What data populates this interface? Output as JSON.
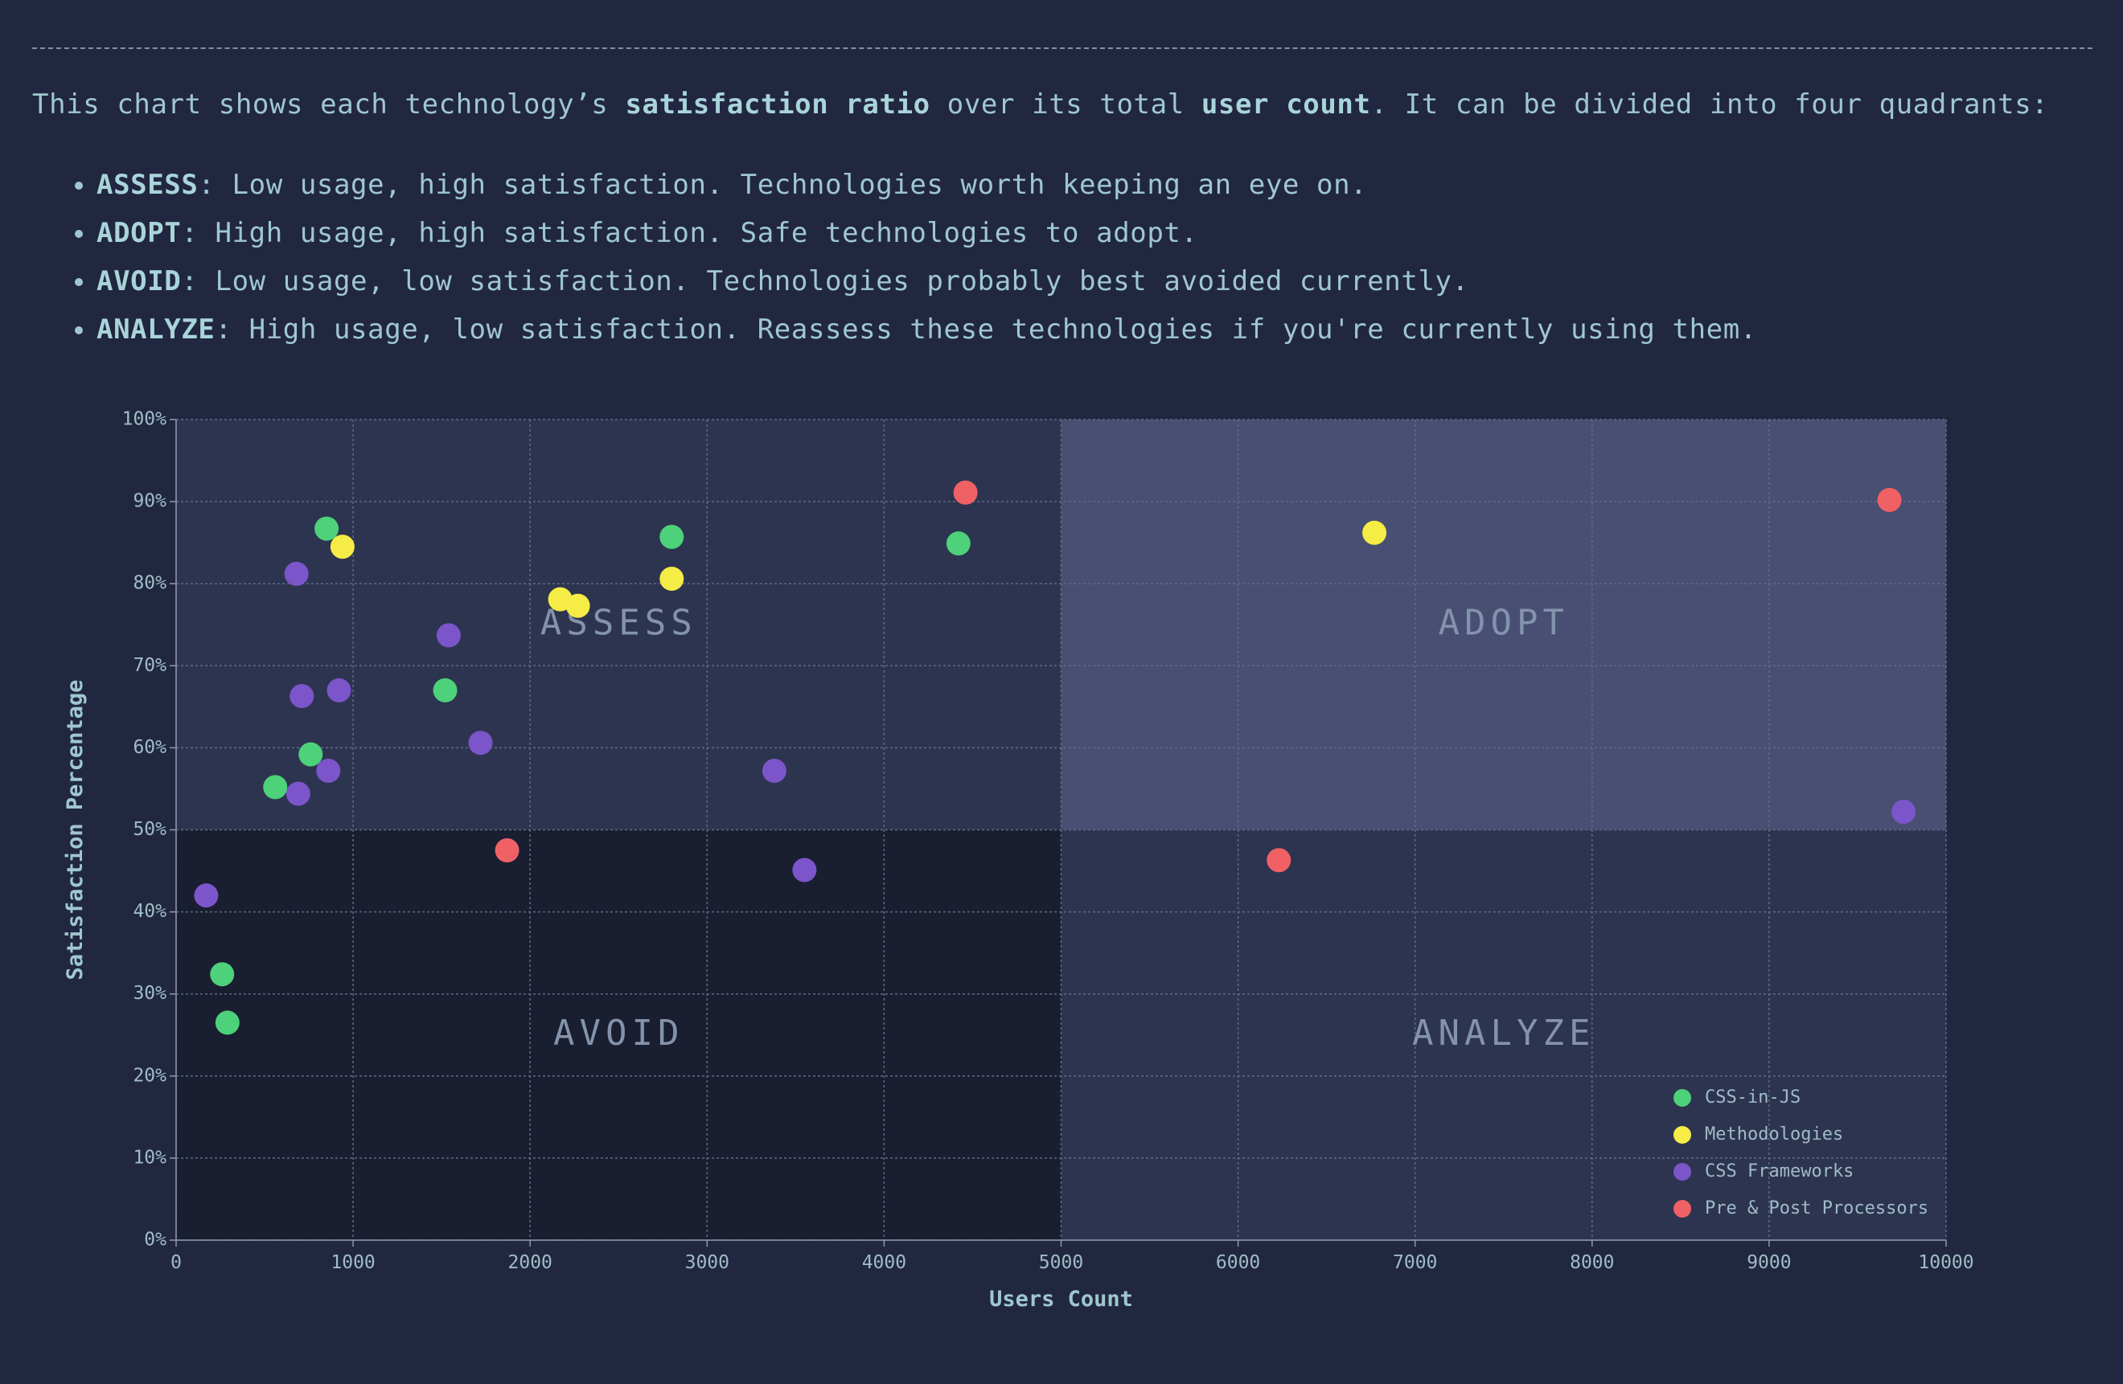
{
  "intro": {
    "part1": "This chart shows each technology’s ",
    "bold1": "satisfaction ratio",
    "part2": " over its total ",
    "bold2": "user count",
    "part3": ". It can be divided into four quadrants:"
  },
  "quadrants": [
    {
      "name": "ASSESS",
      "desc": ": Low usage, high satisfaction. Technologies worth keeping an eye on."
    },
    {
      "name": "ADOPT",
      "desc": ": High usage, high satisfaction. Safe technologies to adopt."
    },
    {
      "name": "AVOID",
      "desc": ": Low usage, low satisfaction. Technologies probably best avoided currently."
    },
    {
      "name": "ANALYZE",
      "desc": ": High usage, low satisfaction. Reassess these technologies if you're currently using them."
    }
  ],
  "colors": {
    "background": "#212740",
    "quadrant_assess": "#2d3450",
    "quadrant_adopt": "#484f73",
    "quadrant_avoid": "#191e31",
    "quadrant_analyze": "#2d3450",
    "grid": "#5f6b86"
  },
  "chart_data": {
    "type": "scatter",
    "xlabel": "Users Count",
    "ylabel": "Satisfaction Percentage",
    "xlim": [
      0,
      10000
    ],
    "ylim": [
      0,
      100
    ],
    "x_ticks": [
      0,
      1000,
      2000,
      3000,
      4000,
      5000,
      6000,
      7000,
      8000,
      9000,
      10000
    ],
    "x_tick_labels": [
      "0",
      "1000",
      "2000",
      "3000",
      "4000",
      "5000",
      "6000",
      "7000",
      "8000",
      "9000",
      "10000"
    ],
    "y_ticks": [
      0,
      10,
      20,
      30,
      40,
      50,
      60,
      70,
      80,
      90,
      100
    ],
    "y_tick_labels": [
      "0%",
      "10%",
      "20%",
      "30%",
      "40%",
      "50%",
      "60%",
      "70%",
      "80%",
      "90%",
      "100%"
    ],
    "grid": true,
    "quadrant_split": {
      "x": 5000,
      "y": 50
    },
    "quadrant_labels": [
      "ASSESS",
      "ADOPT",
      "AVOID",
      "ANALYZE"
    ],
    "legend_position": "bottom-right",
    "series": [
      {
        "name": "CSS-in-JS",
        "color": "#4dd17a",
        "points": [
          [
            850,
            86.7
          ],
          [
            2800,
            85.7
          ],
          [
            4420,
            84.9
          ],
          [
            1520,
            67.0
          ],
          [
            760,
            59.2
          ],
          [
            560,
            55.2
          ],
          [
            260,
            32.4
          ],
          [
            290,
            26.5
          ]
        ]
      },
      {
        "name": "Methodologies",
        "color": "#f5ec45",
        "points": [
          [
            940,
            84.5
          ],
          [
            2170,
            78.1
          ],
          [
            2270,
            77.3
          ],
          [
            2800,
            80.6
          ],
          [
            6770,
            86.2
          ]
        ]
      },
      {
        "name": "CSS Frameworks",
        "color": "#7b55c9",
        "points": [
          [
            680,
            81.2
          ],
          [
            1540,
            73.7
          ],
          [
            920,
            67.0
          ],
          [
            710,
            66.3
          ],
          [
            1720,
            60.6
          ],
          [
            860,
            57.2
          ],
          [
            690,
            54.4
          ],
          [
            3380,
            57.2
          ],
          [
            3550,
            45.1
          ],
          [
            170,
            42.0
          ],
          [
            9760,
            52.2
          ]
        ]
      },
      {
        "name": "Pre & Post Processors",
        "color": "#f06165",
        "points": [
          [
            4460,
            91.1
          ],
          [
            9680,
            90.2
          ],
          [
            1870,
            47.5
          ],
          [
            6230,
            46.3
          ]
        ]
      }
    ]
  }
}
